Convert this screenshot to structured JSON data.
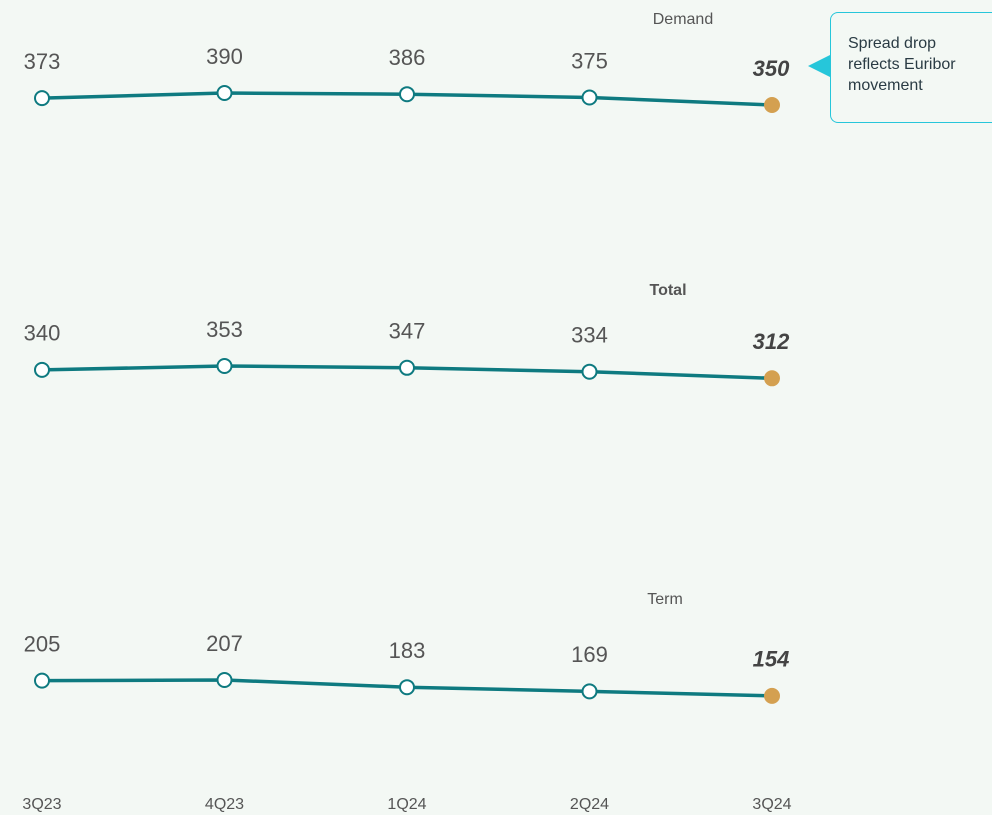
{
  "chart_data": {
    "type": "line",
    "categories": [
      "3Q23",
      "4Q23",
      "1Q24",
      "2Q24",
      "3Q24"
    ],
    "series": [
      {
        "name": "Demand",
        "color": "#0e7a80",
        "values": [
          373,
          390,
          386,
          375,
          350
        ]
      },
      {
        "name": "Total",
        "color": "#0e7a80",
        "values": [
          340,
          353,
          347,
          334,
          312
        ]
      },
      {
        "name": "Term",
        "color": "#0e7a80",
        "values": [
          205,
          207,
          183,
          169,
          154
        ]
      }
    ],
    "highlight_color": "#d4a050",
    "annotation": "Spread drop reflects Euribor movement"
  }
}
